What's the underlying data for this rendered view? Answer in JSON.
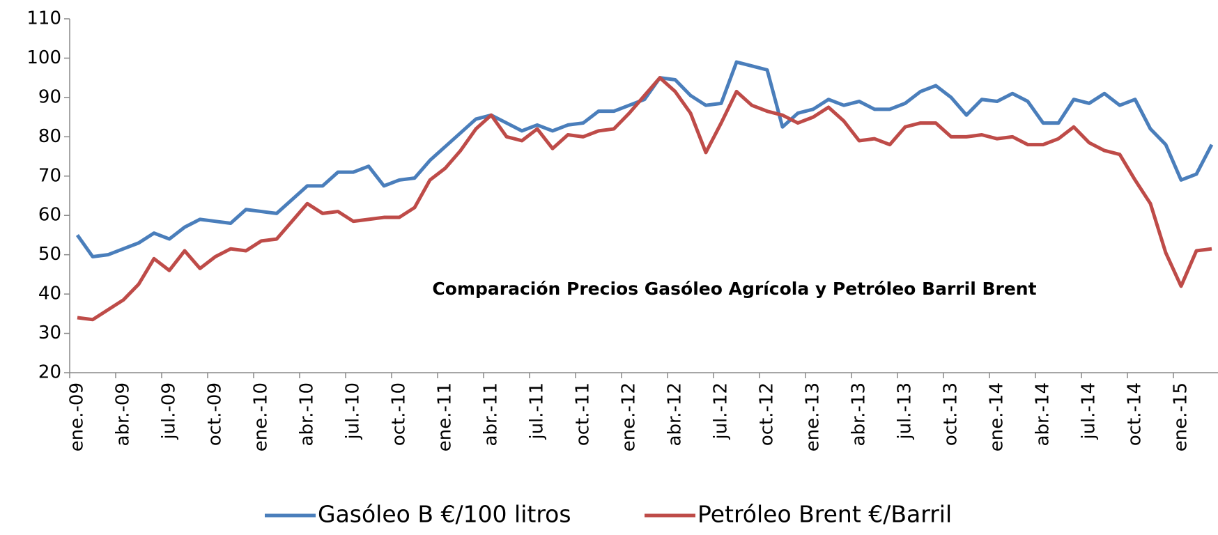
{
  "chart_data": {
    "type": "line",
    "title": "Comparación Precios Gasóleo Agrícola y Petróleo Barril Brent",
    "categories": [
      "ene.-09",
      null,
      null,
      "abr.-09",
      null,
      null,
      "jul.-09",
      null,
      null,
      "oct.-09",
      null,
      null,
      "ene.-10",
      null,
      null,
      "abr.-10",
      null,
      null,
      "jul.-10",
      null,
      null,
      "oct.-10",
      null,
      null,
      "ene.-11",
      null,
      null,
      "abr.-11",
      null,
      null,
      "jul.-11",
      null,
      null,
      "oct.-11",
      null,
      null,
      "ene.-12",
      null,
      null,
      "abr.-12",
      null,
      null,
      "jul.-12",
      null,
      null,
      "oct.-12",
      null,
      null,
      "ene.-13",
      null,
      null,
      "abr.-13",
      null,
      null,
      "jul.-13",
      null,
      null,
      "oct.-13",
      null,
      null,
      "ene.-14",
      null,
      null,
      "abr.-14",
      null,
      null,
      "jul.-14",
      null,
      null,
      "oct.-14",
      null,
      null,
      "ene.-15",
      null,
      null
    ],
    "series": [
      {
        "name": "Gasóleo B €/100 litros",
        "color": "#4a7ebb",
        "values": [
          55,
          49.5,
          50,
          51.5,
          53,
          55.5,
          54,
          57,
          59,
          58.5,
          58,
          61.5,
          61,
          60.5,
          64,
          67.5,
          67.5,
          71,
          71,
          72.5,
          67.5,
          69,
          69.5,
          74,
          77.5,
          81,
          84.5,
          85.5,
          83.5,
          81.5,
          83,
          81.5,
          83,
          83.5,
          86.5,
          86.5,
          88,
          89.5,
          95,
          94.5,
          90.5,
          88,
          88.5,
          99,
          98,
          97,
          82.5,
          86,
          87,
          89.5,
          88,
          89,
          87,
          87,
          88.5,
          91.5,
          93,
          90,
          85.5,
          89.5,
          89,
          91,
          89,
          83.5,
          83.5,
          89.5,
          88.5,
          91,
          88,
          89.5,
          82,
          78,
          69,
          70.5,
          78
        ]
      },
      {
        "name": "Petróleo Brent €/Barril",
        "color": "#be4b48",
        "values": [
          34,
          33.5,
          36,
          38.5,
          42.5,
          49,
          46,
          51,
          46.5,
          49.5,
          51.5,
          51,
          53.5,
          54,
          58.5,
          63,
          60.5,
          61,
          58.5,
          59,
          59.5,
          59.5,
          62,
          69,
          72,
          76.5,
          82,
          85.5,
          80,
          79,
          82,
          77,
          80.5,
          80,
          81.5,
          82,
          86,
          90.5,
          95,
          91.5,
          86,
          76,
          83.5,
          91.5,
          88,
          86.5,
          85.5,
          83.5,
          85,
          87.5,
          84,
          79,
          79.5,
          78,
          82.5,
          83.5,
          83.5,
          80,
          80,
          80.5,
          79.5,
          80,
          78,
          78,
          79.5,
          82.5,
          78.5,
          76.5,
          75.5,
          69,
          63,
          50.5,
          42,
          51,
          51.5
        ]
      }
    ],
    "ylim": [
      20,
      110
    ],
    "yticks": [
      20,
      30,
      40,
      50,
      60,
      70,
      80,
      90,
      100,
      110
    ],
    "legend": "bottom"
  }
}
